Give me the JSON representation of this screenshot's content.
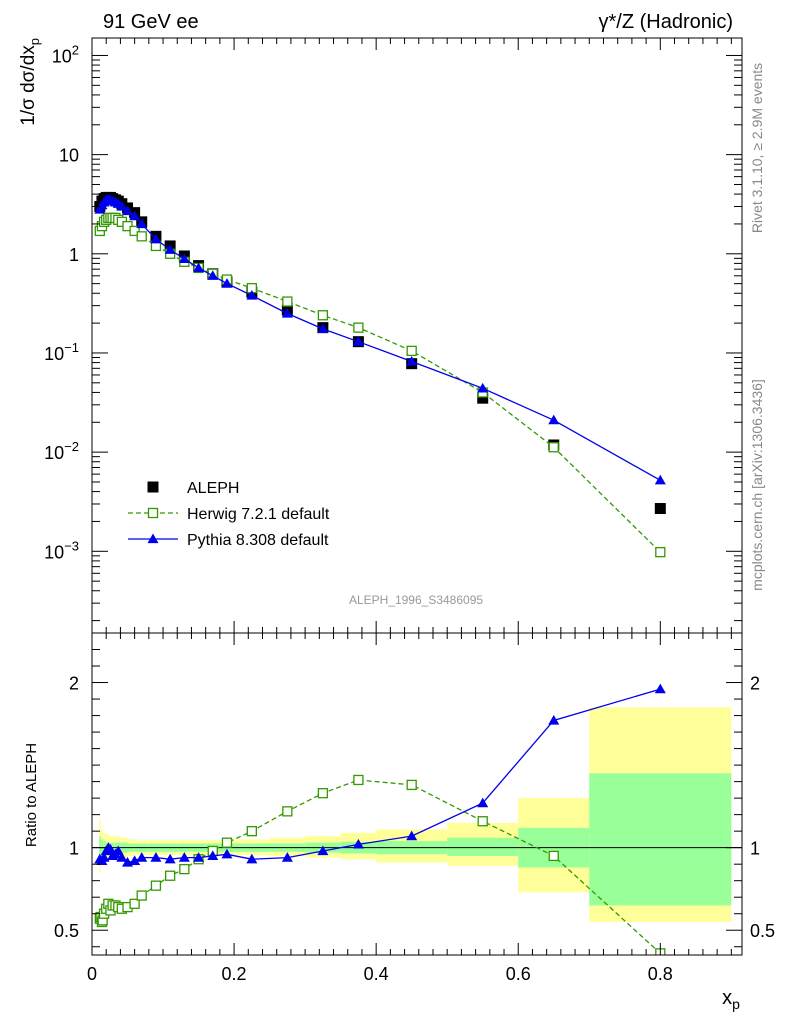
{
  "header": {
    "left": "91 GeV ee",
    "right": "γ*/Z (Hadronic)"
  },
  "side": {
    "rivet": "Rivet 3.1.10, ≥ 2.9M events",
    "mcplots": "mcplots.cern.ch [arXiv:1306.3436]"
  },
  "watermark": "ALEPH_1996_S3486095",
  "chart_data": [
    {
      "type": "scatter",
      "panel": "main",
      "ylabel": "1/σ dσ/dx_p",
      "yscale": "log",
      "ylim": [
        0.00015,
        150
      ],
      "xlim": [
        0,
        0.915
      ],
      "yticks": [
        {
          "v": 0.001,
          "base": "10",
          "exp": "−3"
        },
        {
          "v": 0.01,
          "base": "10",
          "exp": "−2"
        },
        {
          "v": 0.1,
          "base": "10",
          "exp": "−1"
        },
        {
          "v": 1,
          "base": "1",
          "exp": ""
        },
        {
          "v": 10,
          "base": "10",
          "exp": ""
        },
        {
          "v": 100,
          "base": "10",
          "exp": "2"
        }
      ],
      "legend": {
        "position": "bottom-left"
      },
      "series": [
        {
          "name": "ALEPH",
          "color": "#000000",
          "marker": "filled-square",
          "x": [
            0.011,
            0.014,
            0.017,
            0.02,
            0.023,
            0.026,
            0.029,
            0.033,
            0.037,
            0.042,
            0.05,
            0.06,
            0.07,
            0.09,
            0.11,
            0.13,
            0.15,
            0.17,
            0.19,
            0.225,
            0.275,
            0.325,
            0.375,
            0.45,
            0.55,
            0.65,
            0.8
          ],
          "y": [
            3.0,
            3.4,
            3.6,
            3.7,
            3.7,
            3.7,
            3.6,
            3.5,
            3.4,
            3.2,
            2.9,
            2.6,
            2.1,
            1.5,
            1.2,
            0.95,
            0.76,
            0.63,
            0.52,
            0.41,
            0.27,
            0.18,
            0.13,
            0.078,
            0.035,
            0.0118,
            0.0027
          ]
        },
        {
          "name": "Herwig 7.2.1 default",
          "color": "#339900",
          "marker": "open-square",
          "line": "dashed",
          "x": [
            0.011,
            0.014,
            0.017,
            0.02,
            0.023,
            0.026,
            0.029,
            0.033,
            0.037,
            0.042,
            0.05,
            0.06,
            0.07,
            0.09,
            0.11,
            0.13,
            0.15,
            0.17,
            0.19,
            0.225,
            0.275,
            0.325,
            0.375,
            0.45,
            0.55,
            0.65,
            0.8
          ],
          "y": [
            1.7,
            1.9,
            2.1,
            2.2,
            2.3,
            2.3,
            2.3,
            2.3,
            2.2,
            2.1,
            1.9,
            1.7,
            1.5,
            1.2,
            1.0,
            0.83,
            0.72,
            0.63,
            0.55,
            0.45,
            0.33,
            0.24,
            0.18,
            0.105,
            0.04,
            0.0112,
            0.00098
          ]
        },
        {
          "name": "Pythia 8.308 default",
          "color": "#0000ee",
          "marker": "filled-triangle",
          "line": "solid",
          "x": [
            0.011,
            0.014,
            0.017,
            0.02,
            0.023,
            0.026,
            0.029,
            0.033,
            0.037,
            0.042,
            0.05,
            0.06,
            0.07,
            0.09,
            0.11,
            0.13,
            0.15,
            0.17,
            0.19,
            0.225,
            0.275,
            0.325,
            0.375,
            0.45,
            0.55,
            0.65,
            0.8
          ],
          "y": [
            2.8,
            3.1,
            3.3,
            3.5,
            3.5,
            3.5,
            3.4,
            3.3,
            3.2,
            3.0,
            2.7,
            2.4,
            2.0,
            1.4,
            1.1,
            0.89,
            0.72,
            0.6,
            0.5,
            0.38,
            0.25,
            0.175,
            0.13,
            0.082,
            0.044,
            0.021,
            0.0052
          ]
        }
      ]
    },
    {
      "type": "scatter",
      "panel": "ratio",
      "ylabel": "Ratio to ALEPH",
      "xlabel": "x_p",
      "ylim": [
        0.35,
        2.3
      ],
      "xlim": [
        0,
        0.915
      ],
      "yticks": [
        0.5,
        1,
        2
      ],
      "xticks": [
        0,
        0.2,
        0.4,
        0.6,
        0.8
      ],
      "xtick_labels": [
        "0",
        "0.2",
        "0.4",
        "0.6",
        "0.8"
      ],
      "bands": {
        "edges": [
          0.01,
          0.012,
          0.016,
          0.02,
          0.024,
          0.028,
          0.032,
          0.036,
          0.04,
          0.045,
          0.05,
          0.06,
          0.08,
          0.1,
          0.12,
          0.14,
          0.16,
          0.18,
          0.2,
          0.25,
          0.3,
          0.35,
          0.4,
          0.5,
          0.6,
          0.7,
          0.9
        ],
        "stat_lo": [
          0.93,
          0.95,
          0.96,
          0.97,
          0.97,
          0.97,
          0.97,
          0.97,
          0.97,
          0.97,
          0.975,
          0.975,
          0.975,
          0.975,
          0.975,
          0.975,
          0.975,
          0.975,
          0.975,
          0.975,
          0.97,
          0.965,
          0.96,
          0.95,
          0.88,
          0.65
        ],
        "stat_hi": [
          1.07,
          1.05,
          1.04,
          1.03,
          1.03,
          1.03,
          1.03,
          1.03,
          1.03,
          1.03,
          1.025,
          1.025,
          1.025,
          1.025,
          1.025,
          1.025,
          1.025,
          1.025,
          1.025,
          1.025,
          1.03,
          1.035,
          1.04,
          1.06,
          1.12,
          1.45
        ],
        "total_lo": [
          0.85,
          0.9,
          0.91,
          0.92,
          0.93,
          0.93,
          0.93,
          0.93,
          0.94,
          0.94,
          0.95,
          0.955,
          0.955,
          0.955,
          0.955,
          0.955,
          0.955,
          0.955,
          0.955,
          0.95,
          0.94,
          0.93,
          0.91,
          0.89,
          0.73,
          0.55
        ],
        "total_hi": [
          1.18,
          1.11,
          1.09,
          1.08,
          1.07,
          1.07,
          1.07,
          1.07,
          1.06,
          1.06,
          1.05,
          1.045,
          1.045,
          1.045,
          1.045,
          1.045,
          1.045,
          1.045,
          1.05,
          1.06,
          1.07,
          1.09,
          1.11,
          1.15,
          1.3,
          1.85
        ],
        "stat_color": "#99ff99",
        "total_color": "#ffff99"
      },
      "series": [
        {
          "name": "Herwig 7.2.1 default",
          "color": "#339900",
          "marker": "open-square",
          "line": "dashed",
          "x": [
            0.011,
            0.012,
            0.014,
            0.015,
            0.017,
            0.02,
            0.023,
            0.026,
            0.029,
            0.033,
            0.037,
            0.042,
            0.05,
            0.06,
            0.07,
            0.09,
            0.11,
            0.13,
            0.15,
            0.17,
            0.19,
            0.225,
            0.275,
            0.325,
            0.375,
            0.45,
            0.55,
            0.65,
            0.8
          ],
          "y": [
            0.57,
            0.58,
            0.55,
            0.56,
            0.6,
            0.63,
            0.66,
            0.62,
            0.65,
            0.65,
            0.64,
            0.63,
            0.64,
            0.66,
            0.71,
            0.77,
            0.83,
            0.87,
            0.93,
            0.98,
            1.03,
            1.1,
            1.22,
            1.33,
            1.41,
            1.38,
            1.16,
            0.95,
            0.36
          ]
        },
        {
          "name": "Pythia 8.308 default",
          "color": "#0000ee",
          "marker": "filled-triangle",
          "line": "solid",
          "x": [
            0.011,
            0.014,
            0.017,
            0.02,
            0.023,
            0.026,
            0.029,
            0.033,
            0.037,
            0.042,
            0.05,
            0.06,
            0.07,
            0.09,
            0.11,
            0.13,
            0.15,
            0.17,
            0.19,
            0.225,
            0.275,
            0.325,
            0.375,
            0.45,
            0.55,
            0.65,
            0.8
          ],
          "y": [
            0.93,
            0.92,
            0.94,
            0.98,
            1.0,
            0.99,
            0.95,
            0.96,
            0.98,
            0.94,
            0.91,
            0.92,
            0.94,
            0.94,
            0.93,
            0.94,
            0.94,
            0.95,
            0.96,
            0.93,
            0.94,
            0.98,
            1.02,
            1.07,
            1.27,
            1.77,
            1.96
          ]
        }
      ]
    }
  ]
}
